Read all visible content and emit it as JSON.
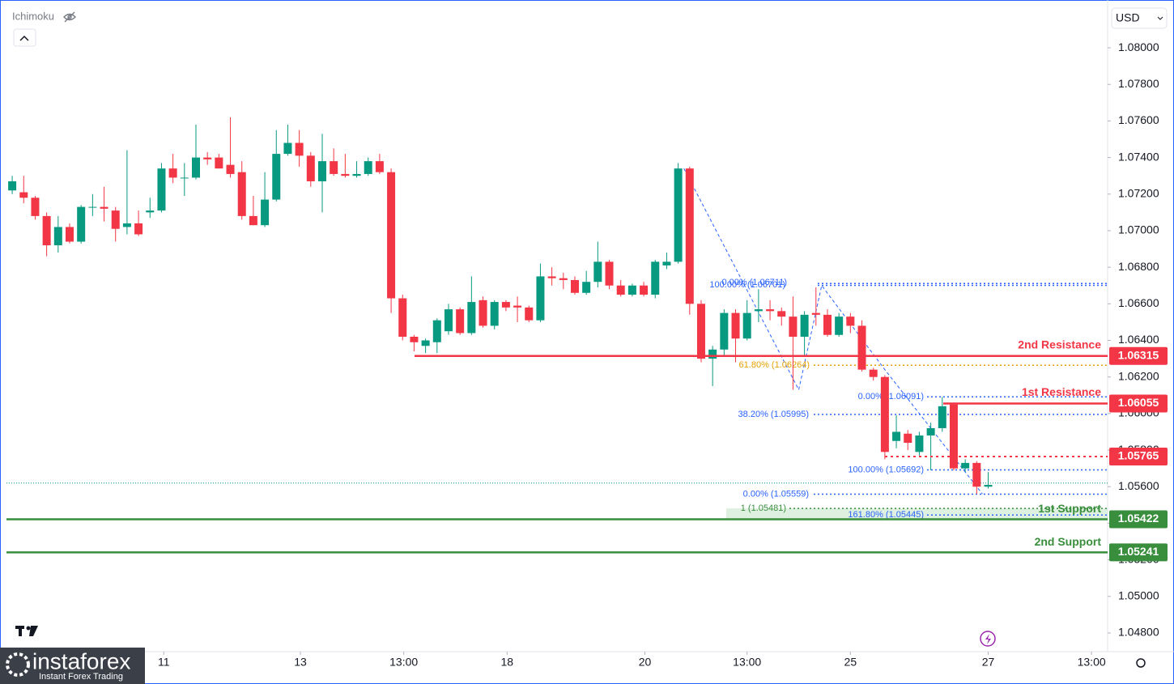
{
  "chart_data": {
    "type": "candlestick",
    "indicator": "Ichimoku",
    "currency": "USD",
    "up_color": "#089981",
    "down_color": "#f23645",
    "open": [
      1.0722,
      1.0721,
      1.0718,
      1.0708,
      1.0692,
      1.0702,
      1.0694,
      1.0713,
      1.0713,
      1.0711,
      1.0702,
      1.0704,
      1.071,
      1.0711,
      1.0734,
      1.0729,
      1.0729,
      1.074,
      1.074,
      1.0736,
      1.0732,
      1.0708,
      1.0703,
      1.0717,
      1.0742,
      1.0748,
      1.0741,
      1.0727,
      1.0738,
      1.0731,
      1.073,
      1.0731,
      1.0738,
      1.0732,
      1.0663,
      1.0642,
      1.0637,
      1.0639,
      1.0645,
      1.0657,
      1.0644,
      1.0662,
      1.0648,
      1.0661,
      1.0659,
      1.0658,
      1.0651,
      1.0675,
      1.0674,
      1.0673,
      1.0666,
      1.0672,
      1.0683,
      1.067,
      1.0665,
      1.067,
      1.0665,
      1.0681,
      1.0683,
      1.0734,
      1.066,
      1.063,
      1.0635,
      1.0655,
      1.0641,
      1.0656,
      1.0657,
      1.0656,
      1.0653,
      1.0642,
      1.0655,
      1.0654,
      1.0643,
      1.0653,
      1.0648,
      1.0624,
      1.062,
      1.0585,
      1.0589,
      1.0579,
      1.0588,
      1.0592,
      1.0605,
      1.057,
      1.0573,
      1.056
    ],
    "high": [
      1.073,
      1.073,
      1.0719,
      1.071,
      1.0708,
      1.0704,
      1.0714,
      1.072,
      1.0724,
      1.0713,
      1.0744,
      1.0711,
      1.0718,
      1.0737,
      1.0742,
      1.0737,
      1.0758,
      1.0743,
      1.0742,
      1.0762,
      1.0738,
      1.0719,
      1.0732,
      1.0755,
      1.0758,
      1.0755,
      1.0743,
      1.0753,
      1.0745,
      1.0742,
      1.0738,
      1.074,
      1.0742,
      1.0734,
      1.0665,
      1.0643,
      1.0641,
      1.0652,
      1.066,
      1.0658,
      1.0675,
      1.0664,
      1.0662,
      1.0662,
      1.0664,
      1.0659,
      1.0682,
      1.068,
      1.0677,
      1.0675,
      1.0678,
      1.0694,
      1.0684,
      1.0673,
      1.0671,
      1.0672,
      1.0684,
      1.0688,
      1.0737,
      1.0735,
      1.0662,
      1.0637,
      1.0657,
      1.0657,
      1.0662,
      1.0668,
      1.0662,
      1.0658,
      1.0664,
      1.0656,
      1.0669,
      1.0657,
      1.0655,
      1.0655,
      1.0651,
      1.0625,
      1.0621,
      1.0599,
      1.0591,
      1.059,
      1.0595,
      1.0609,
      1.0606,
      1.0575,
      1.0574,
      1.0568
    ],
    "low": [
      1.072,
      1.0715,
      1.0706,
      1.0686,
      1.0688,
      1.0693,
      1.0693,
      1.0708,
      1.0705,
      1.0694,
      1.0698,
      1.0697,
      1.0707,
      1.071,
      1.0726,
      1.0719,
      1.0728,
      1.0736,
      1.0734,
      1.0729,
      1.0706,
      1.0703,
      1.0702,
      1.0716,
      1.0741,
      1.0735,
      1.0724,
      1.071,
      1.073,
      1.0729,
      1.0729,
      1.073,
      1.0731,
      1.0655,
      1.064,
      1.0634,
      1.0633,
      1.0633,
      1.0643,
      1.0643,
      1.0643,
      1.0647,
      1.0646,
      1.0656,
      1.065,
      1.065,
      1.065,
      1.067,
      1.0668,
      1.0665,
      1.0665,
      1.0669,
      1.0668,
      1.0664,
      1.0664,
      1.0664,
      1.0663,
      1.0679,
      1.0682,
      1.0654,
      1.0628,
      1.0615,
      1.0632,
      1.0628,
      1.064,
      1.065,
      1.0651,
      1.0648,
      1.0613,
      1.0632,
      1.0648,
      1.0642,
      1.0642,
      1.0644,
      1.0623,
      1.0618,
      1.0575,
      1.0581,
      1.058,
      1.0577,
      1.0569,
      1.059,
      1.0569,
      1.0568,
      1.0556,
      1.0559
    ],
    "close": [
      1.0727,
      1.0718,
      1.0708,
      1.0692,
      1.0702,
      1.0694,
      1.0713,
      1.0713,
      1.0712,
      1.0701,
      1.0704,
      1.0698,
      1.0711,
      1.0734,
      1.0729,
      1.0729,
      1.074,
      1.0739,
      1.0734,
      1.0731,
      1.0708,
      1.0703,
      1.0717,
      1.0742,
      1.0748,
      1.0741,
      1.0727,
      1.0738,
      1.0731,
      1.073,
      1.0731,
      1.0738,
      1.0732,
      1.0663,
      1.0642,
      1.0639,
      1.064,
      1.0651,
      1.0657,
      1.0644,
      1.0661,
      1.0648,
      1.0661,
      1.0658,
      1.0658,
      1.0651,
      1.0675,
      1.0674,
      1.0673,
      1.0666,
      1.0672,
      1.0683,
      1.067,
      1.0665,
      1.067,
      1.0665,
      1.0683,
      1.0683,
      1.0734,
      1.066,
      1.063,
      1.0635,
      1.0655,
      1.0641,
      1.0655,
      1.0657,
      1.0656,
      1.0653,
      1.0642,
      1.0654,
      1.0654,
      1.0643,
      1.0653,
      1.0648,
      1.0624,
      1.062,
      1.0579,
      1.059,
      1.0584,
      1.0588,
      1.0592,
      1.0604,
      1.057,
      1.0573,
      1.056,
      1.0561
    ],
    "xlim": [
      -0.5,
      95.4
    ],
    "xticks": [
      {
        "value": 13.2,
        "label": "11"
      },
      {
        "value": 25.1,
        "label": "13"
      },
      {
        "value": 34.1,
        "label": "13:00"
      },
      {
        "value": 43.1,
        "label": "18"
      },
      {
        "value": 55.1,
        "label": "20"
      },
      {
        "value": 64.0,
        "label": "13:00"
      },
      {
        "value": 73.0,
        "label": "25"
      },
      {
        "value": 85.0,
        "label": "27"
      },
      {
        "value": 94.0,
        "label": "13:00"
      }
    ],
    "ylim": [
      1.04698,
      1.08226
    ],
    "yticks": [
      {
        "value": 1.048,
        "label": "1.04800"
      },
      {
        "value": 1.05,
        "label": "1.05000"
      },
      {
        "value": 1.052,
        "label": "1.05200"
      },
      {
        "value": 1.054,
        "label": "1.05400"
      },
      {
        "value": 1.056,
        "label": "1.05600"
      },
      {
        "value": 1.058,
        "label": "1.05800"
      },
      {
        "value": 1.06,
        "label": "1.06000"
      },
      {
        "value": 1.062,
        "label": "1.06200"
      },
      {
        "value": 1.064,
        "label": "1.06400"
      },
      {
        "value": 1.066,
        "label": "1.06600"
      },
      {
        "value": 1.068,
        "label": "1.06800"
      },
      {
        "value": 1.07,
        "label": "1.07000"
      },
      {
        "value": 1.072,
        "label": "1.07200"
      },
      {
        "value": 1.074,
        "label": "1.07400"
      },
      {
        "value": 1.076,
        "label": "1.07600"
      },
      {
        "value": 1.078,
        "label": "1.07800"
      },
      {
        "value": 1.08,
        "label": "1.08000"
      }
    ],
    "last_price": 1.0562,
    "levels": [
      {
        "name": "2nd Resistance",
        "value": 1.06315,
        "color": "#f23645"
      },
      {
        "name": "1st Resistance",
        "value": 1.06055,
        "color": "#f23645"
      },
      {
        "value": 1.05765,
        "color": "#f23645"
      },
      {
        "name": "1st Support",
        "value": 1.05422,
        "color": "#388e3c"
      },
      {
        "name": "2nd Support",
        "value": 1.05241,
        "color": "#388e3c"
      }
    ],
    "fib_levels": [
      {
        "label": "100.00% (1.06701)",
        "value": 1.06701,
        "color": "#2962ff"
      },
      {
        "label": "0.00% (1.06711)",
        "value": 1.06711,
        "color": "#2962ff"
      },
      {
        "label": "61.80% (1.06264)",
        "value": 1.06264,
        "color": "#e6a100"
      },
      {
        "label": "0.00% (1.06091)",
        "value": 1.06091,
        "color": "#2962ff"
      },
      {
        "label": "38.20% (1.05995)",
        "value": 1.05995,
        "color": "#2962ff"
      },
      {
        "label": "100.00% (1.05692)",
        "value": 1.05692,
        "color": "#2962ff"
      },
      {
        "label": "0.00% (1.05559)",
        "value": 1.05559,
        "color": "#2962ff"
      },
      {
        "label": "1 (1.05481)",
        "value": 1.05481,
        "color": "#388e3c"
      },
      {
        "label": "161.80% (1.05445)",
        "value": 1.05445,
        "color": "#2962ff"
      }
    ]
  },
  "branding": {
    "name": "instaforex",
    "tagline": "Instant Forex Trading"
  }
}
